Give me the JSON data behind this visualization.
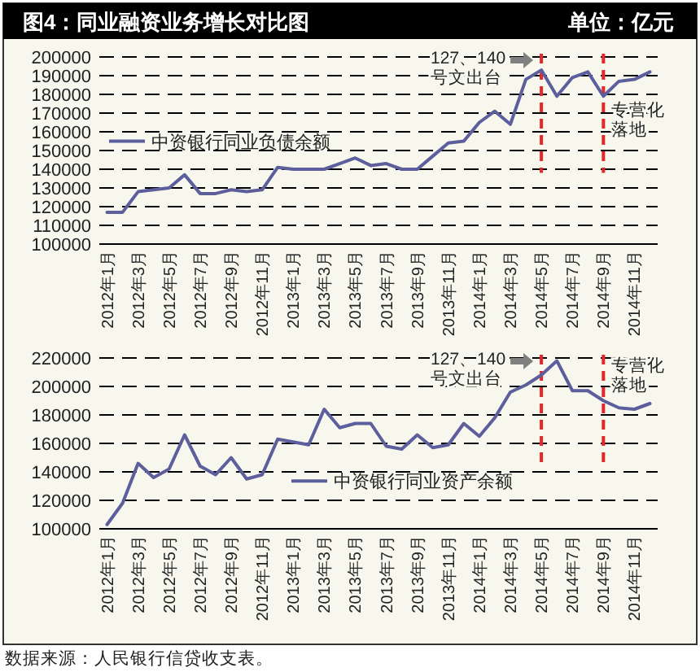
{
  "chart_data": [
    {
      "type": "line",
      "title": "图4：同业融资业务增长对比图",
      "subtitle": "单位：亿元",
      "categories": [
        "2012年1月",
        null,
        "2012年3月",
        null,
        "2012年5月",
        null,
        "2012年7月",
        null,
        "2012年9月",
        null,
        "2012年11月",
        null,
        "2013年1月",
        null,
        "2013年3月",
        null,
        "2013年5月",
        null,
        "2013年7月",
        null,
        "2013年9月",
        null,
        "2013年11月",
        null,
        "2014年1月",
        null,
        "2014年3月",
        null,
        "2014年5月",
        null,
        "2014年7月",
        null,
        "2014年9月",
        null,
        "2014年11月",
        null
      ],
      "series": [
        {
          "name": "中资银行同业负债余额",
          "color": "#5c5f9c",
          "values": [
            117000,
            117000,
            128000,
            129000,
            130000,
            137000,
            127000,
            127000,
            129000,
            128000,
            129000,
            141000,
            140000,
            140000,
            140000,
            143000,
            146000,
            142000,
            143000,
            140000,
            140000,
            147000,
            154000,
            155000,
            165000,
            171000,
            164000,
            188000,
            193000,
            179000,
            189000,
            192000,
            179000,
            187000,
            188000,
            192000
          ]
        }
      ],
      "ylim": [
        100000,
        200000
      ],
      "yticks": [
        100000,
        110000,
        120000,
        130000,
        140000,
        150000,
        160000,
        170000,
        180000,
        190000,
        200000
      ],
      "grid": "y",
      "legend": "left",
      "marker": "none",
      "line_style": "solid",
      "ref_lines": [
        {
          "axis": "x",
          "value": "2014年5月",
          "label": "127、140号文出台",
          "color": "#e8262a",
          "line_style": "dashed"
        },
        {
          "axis": "x",
          "value": "2014年9月",
          "label": "专营化落地",
          "color": "#e8262a",
          "line_style": "dashed"
        }
      ]
    },
    {
      "type": "line",
      "categories": [
        "2012年1月",
        null,
        "2012年3月",
        null,
        "2012年5月",
        null,
        "2012年7月",
        null,
        "2012年9月",
        null,
        "2012年11月",
        null,
        "2013年1月",
        null,
        "2013年3月",
        null,
        "2013年5月",
        null,
        "2013年7月",
        null,
        "2013年9月",
        null,
        "2013年11月",
        null,
        "2014年1月",
        null,
        "2014年3月",
        null,
        "2014年5月",
        null,
        "2014年7月",
        null,
        "2014年9月",
        null,
        "2014年11月",
        null
      ],
      "series": [
        {
          "name": "中资银行同业资产余额",
          "color": "#5c5f9c",
          "values": [
            103000,
            118000,
            146000,
            136000,
            142000,
            166000,
            144000,
            138000,
            150000,
            135000,
            138000,
            163000,
            161000,
            159000,
            184000,
            171000,
            174000,
            174000,
            158000,
            156000,
            166000,
            157000,
            159000,
            174000,
            165000,
            178000,
            196000,
            201000,
            208000,
            218000,
            197000,
            197000,
            190000,
            185000,
            184000,
            188000
          ]
        }
      ],
      "ylim": [
        100000,
        220000
      ],
      "yticks": [
        100000,
        120000,
        140000,
        160000,
        180000,
        200000,
        220000
      ],
      "grid": "y",
      "legend": "bottom",
      "marker": "none",
      "line_style": "solid",
      "ref_lines": [
        {
          "axis": "x",
          "value": "2014年5月",
          "label": "127、140号文出台",
          "color": "#e8262a",
          "line_style": "dashed"
        },
        {
          "axis": "x",
          "value": "2014年9月",
          "label": "专营化落地",
          "color": "#e8262a",
          "line_style": "dashed"
        }
      ],
      "annotations": [
        "数据来源：人民银行信贷收支表。"
      ]
    }
  ]
}
